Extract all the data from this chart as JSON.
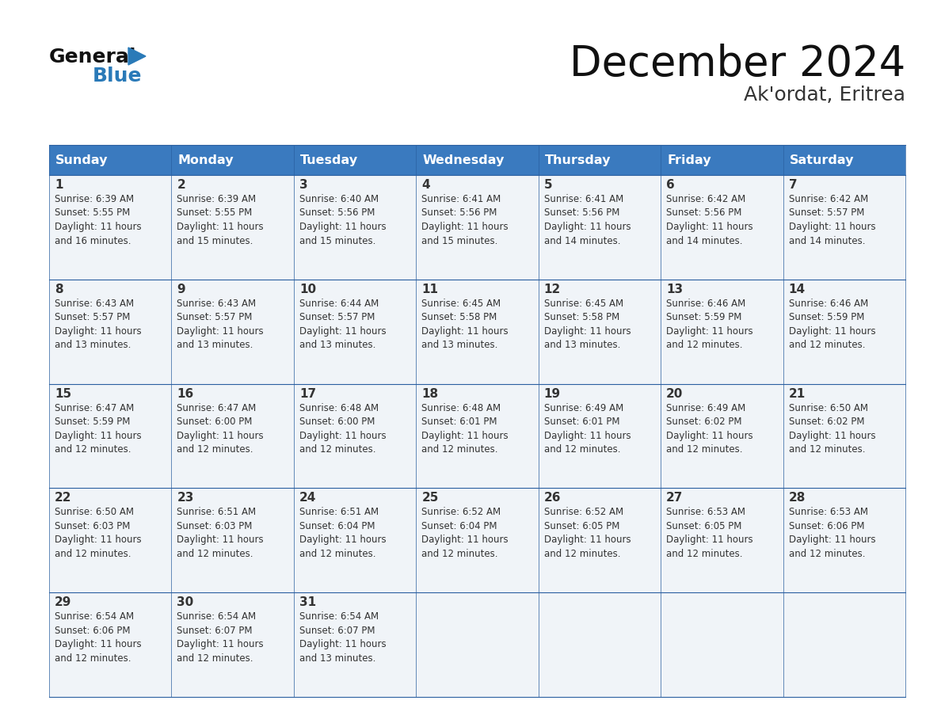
{
  "title": "December 2024",
  "subtitle": "Ak'ordat, Eritrea",
  "header_color": "#3a7abf",
  "header_text_color": "#ffffff",
  "days_of_week": [
    "Sunday",
    "Monday",
    "Tuesday",
    "Wednesday",
    "Thursday",
    "Friday",
    "Saturday"
  ],
  "cell_bg_light": "#f0f4f8",
  "cell_bg_white": "#ffffff",
  "border_color": "#2a5fa0",
  "text_color": "#333333",
  "calendar_data": [
    [
      {
        "day": 1,
        "sunrise": "6:39 AM",
        "sunset": "5:55 PM",
        "daylight": "11 hours and 16 minutes."
      },
      {
        "day": 2,
        "sunrise": "6:39 AM",
        "sunset": "5:55 PM",
        "daylight": "11 hours and 15 minutes."
      },
      {
        "day": 3,
        "sunrise": "6:40 AM",
        "sunset": "5:56 PM",
        "daylight": "11 hours and 15 minutes."
      },
      {
        "day": 4,
        "sunrise": "6:41 AM",
        "sunset": "5:56 PM",
        "daylight": "11 hours and 15 minutes."
      },
      {
        "day": 5,
        "sunrise": "6:41 AM",
        "sunset": "5:56 PM",
        "daylight": "11 hours and 14 minutes."
      },
      {
        "day": 6,
        "sunrise": "6:42 AM",
        "sunset": "5:56 PM",
        "daylight": "11 hours and 14 minutes."
      },
      {
        "day": 7,
        "sunrise": "6:42 AM",
        "sunset": "5:57 PM",
        "daylight": "11 hours and 14 minutes."
      }
    ],
    [
      {
        "day": 8,
        "sunrise": "6:43 AM",
        "sunset": "5:57 PM",
        "daylight": "11 hours and 13 minutes."
      },
      {
        "day": 9,
        "sunrise": "6:43 AM",
        "sunset": "5:57 PM",
        "daylight": "11 hours and 13 minutes."
      },
      {
        "day": 10,
        "sunrise": "6:44 AM",
        "sunset": "5:57 PM",
        "daylight": "11 hours and 13 minutes."
      },
      {
        "day": 11,
        "sunrise": "6:45 AM",
        "sunset": "5:58 PM",
        "daylight": "11 hours and 13 minutes."
      },
      {
        "day": 12,
        "sunrise": "6:45 AM",
        "sunset": "5:58 PM",
        "daylight": "11 hours and 13 minutes."
      },
      {
        "day": 13,
        "sunrise": "6:46 AM",
        "sunset": "5:59 PM",
        "daylight": "11 hours and 12 minutes."
      },
      {
        "day": 14,
        "sunrise": "6:46 AM",
        "sunset": "5:59 PM",
        "daylight": "11 hours and 12 minutes."
      }
    ],
    [
      {
        "day": 15,
        "sunrise": "6:47 AM",
        "sunset": "5:59 PM",
        "daylight": "11 hours and 12 minutes."
      },
      {
        "day": 16,
        "sunrise": "6:47 AM",
        "sunset": "6:00 PM",
        "daylight": "11 hours and 12 minutes."
      },
      {
        "day": 17,
        "sunrise": "6:48 AM",
        "sunset": "6:00 PM",
        "daylight": "11 hours and 12 minutes."
      },
      {
        "day": 18,
        "sunrise": "6:48 AM",
        "sunset": "6:01 PM",
        "daylight": "11 hours and 12 minutes."
      },
      {
        "day": 19,
        "sunrise": "6:49 AM",
        "sunset": "6:01 PM",
        "daylight": "11 hours and 12 minutes."
      },
      {
        "day": 20,
        "sunrise": "6:49 AM",
        "sunset": "6:02 PM",
        "daylight": "11 hours and 12 minutes."
      },
      {
        "day": 21,
        "sunrise": "6:50 AM",
        "sunset": "6:02 PM",
        "daylight": "11 hours and 12 minutes."
      }
    ],
    [
      {
        "day": 22,
        "sunrise": "6:50 AM",
        "sunset": "6:03 PM",
        "daylight": "11 hours and 12 minutes."
      },
      {
        "day": 23,
        "sunrise": "6:51 AM",
        "sunset": "6:03 PM",
        "daylight": "11 hours and 12 minutes."
      },
      {
        "day": 24,
        "sunrise": "6:51 AM",
        "sunset": "6:04 PM",
        "daylight": "11 hours and 12 minutes."
      },
      {
        "day": 25,
        "sunrise": "6:52 AM",
        "sunset": "6:04 PM",
        "daylight": "11 hours and 12 minutes."
      },
      {
        "day": 26,
        "sunrise": "6:52 AM",
        "sunset": "6:05 PM",
        "daylight": "11 hours and 12 minutes."
      },
      {
        "day": 27,
        "sunrise": "6:53 AM",
        "sunset": "6:05 PM",
        "daylight": "11 hours and 12 minutes."
      },
      {
        "day": 28,
        "sunrise": "6:53 AM",
        "sunset": "6:06 PM",
        "daylight": "11 hours and 12 minutes."
      }
    ],
    [
      {
        "day": 29,
        "sunrise": "6:54 AM",
        "sunset": "6:06 PM",
        "daylight": "11 hours and 12 minutes."
      },
      {
        "day": 30,
        "sunrise": "6:54 AM",
        "sunset": "6:07 PM",
        "daylight": "11 hours and 12 minutes."
      },
      {
        "day": 31,
        "sunrise": "6:54 AM",
        "sunset": "6:07 PM",
        "daylight": "11 hours and 13 minutes."
      },
      null,
      null,
      null,
      null
    ]
  ]
}
